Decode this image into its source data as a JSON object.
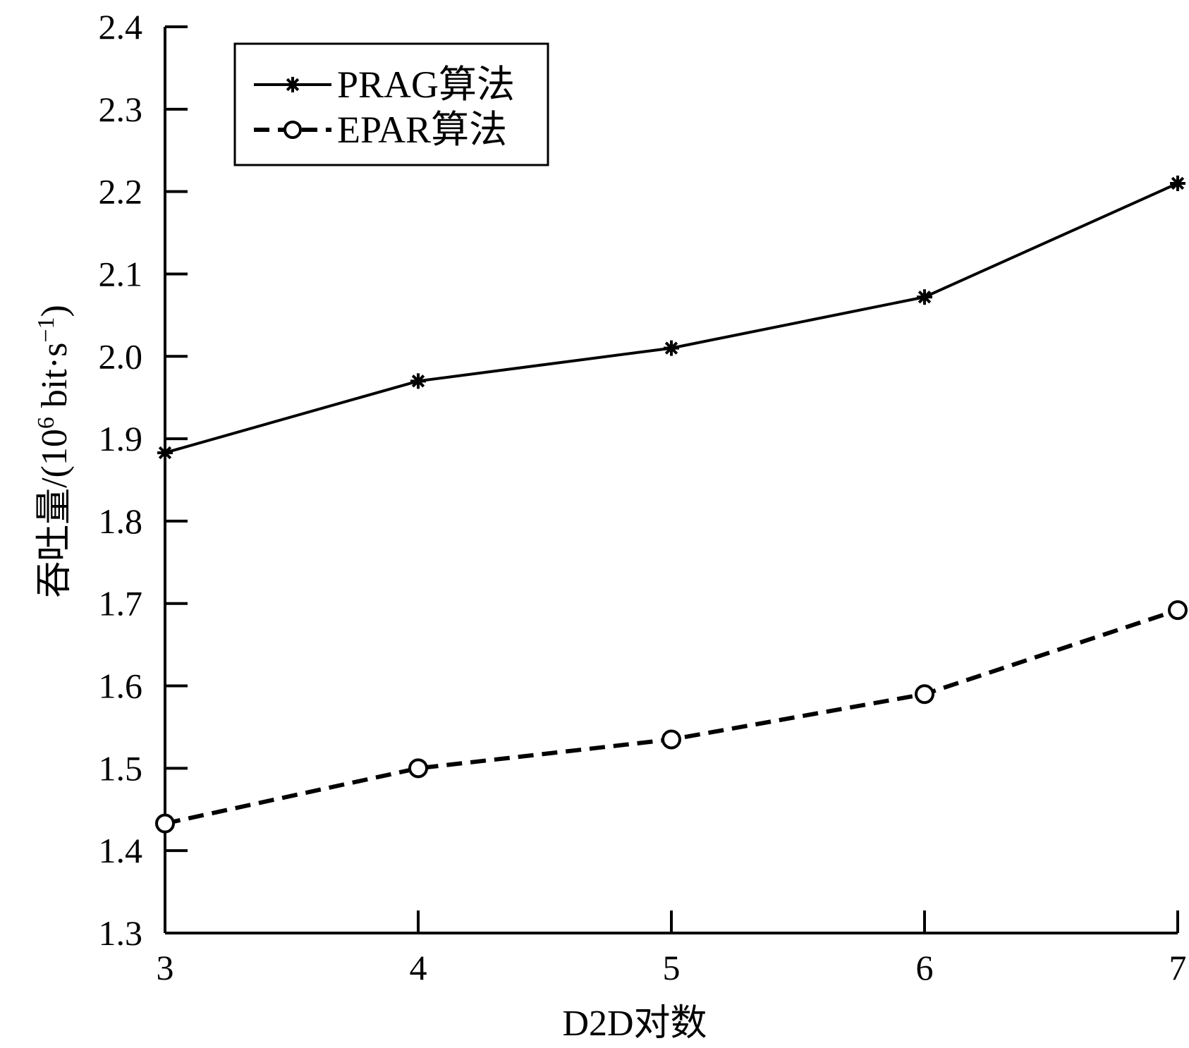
{
  "chart_data": {
    "type": "line",
    "title": "",
    "xlabel": "D2D对数",
    "ylabel": {
      "prefix": "吞吐量/(10",
      "sup1": "6",
      "middle": " bit·s",
      "sup2": "−1",
      "suffix": ")"
    },
    "x": [
      3,
      4,
      5,
      6,
      7
    ],
    "xlim": [
      3,
      7
    ],
    "ylim": [
      1.3,
      2.4
    ],
    "x_ticks": [
      "3",
      "4",
      "5",
      "6",
      "7"
    ],
    "y_ticks": [
      "1.3",
      "1.4",
      "1.5",
      "1.6",
      "1.7",
      "1.8",
      "1.9",
      "2.0",
      "2.1",
      "2.2",
      "2.3",
      "2.4"
    ],
    "grid": false,
    "legend_position": "top-left",
    "series": [
      {
        "name": "PRAG算法",
        "values": [
          1.883,
          1.97,
          2.01,
          2.072,
          2.21
        ],
        "line_style": "solid",
        "marker": "asterisk",
        "color": "#000000"
      },
      {
        "name": "EPAR算法",
        "values": [
          1.433,
          1.5,
          1.535,
          1.59,
          1.692
        ],
        "line_style": "dashed",
        "marker": "circle",
        "color": "#000000"
      }
    ]
  }
}
